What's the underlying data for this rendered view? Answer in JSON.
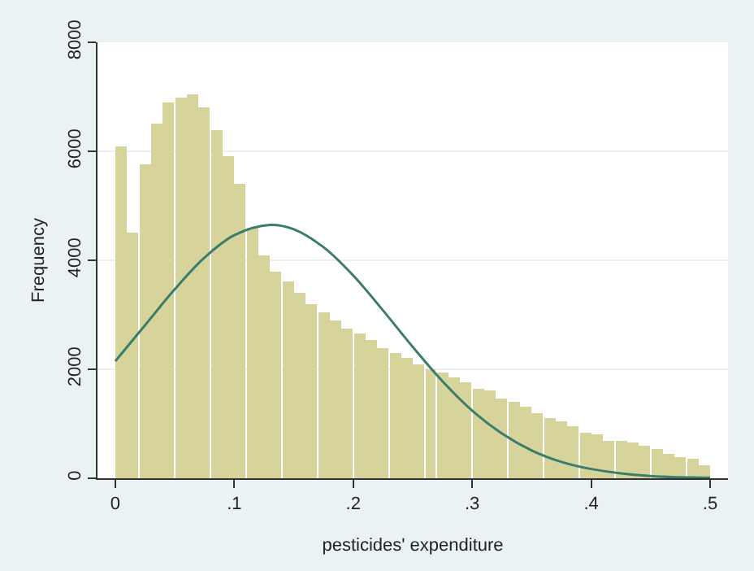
{
  "chart_data": {
    "type": "histogram",
    "xlabel": "pesticides' expenditure",
    "ylabel": "Frequency",
    "bins": [
      0,
      0.01,
      0.02,
      0.03,
      0.04,
      0.05,
      0.06,
      0.07,
      0.08,
      0.09,
      0.1,
      0.11,
      0.12,
      0.13,
      0.14,
      0.15,
      0.16,
      0.17,
      0.18,
      0.19,
      0.2,
      0.21,
      0.22,
      0.23,
      0.24,
      0.25,
      0.26,
      0.27,
      0.28,
      0.29,
      0.3,
      0.31,
      0.32,
      0.33,
      0.34,
      0.35,
      0.36,
      0.37,
      0.38,
      0.39,
      0.4,
      0.41,
      0.42,
      0.43,
      0.44,
      0.45,
      0.46,
      0.47,
      0.48,
      0.49,
      0.5
    ],
    "values": [
      6100,
      4500,
      5750,
      6500,
      6900,
      7000,
      7050,
      6800,
      6400,
      5900,
      5400,
      4600,
      4100,
      3800,
      3600,
      3400,
      3200,
      3050,
      2900,
      2750,
      2650,
      2550,
      2400,
      2300,
      2200,
      2100,
      2000,
      1950,
      1850,
      1750,
      1650,
      1600,
      1450,
      1400,
      1300,
      1200,
      1100,
      1050,
      950,
      850,
      800,
      700,
      700,
      650,
      600,
      550,
      450,
      400,
      350,
      250
    ],
    "color": "#d6d49b",
    "series": [
      {
        "type": "line",
        "color": "#3a7d6c",
        "x": [
          0,
          0.025,
          0.05,
          0.075,
          0.1,
          0.13,
          0.15,
          0.175,
          0.2,
          0.225,
          0.25,
          0.275,
          0.3,
          0.325,
          0.35,
          0.375,
          0.4,
          0.45,
          0.5
        ],
        "values": [
          2150,
          2810,
          3470,
          4050,
          4460,
          4650,
          4570,
          4240,
          3720,
          3080,
          2410,
          1780,
          1240,
          820,
          510,
          300,
          170,
          40,
          10
        ]
      }
    ],
    "xlim": [
      -0.015,
      0.515
    ],
    "xticks": [
      {
        "value": 0,
        "label": "0"
      },
      {
        "value": 0.1,
        "label": ".1"
      },
      {
        "value": 0.2,
        "label": ".2"
      },
      {
        "value": 0.3,
        "label": ".3"
      },
      {
        "value": 0.4,
        "label": ".4"
      },
      {
        "value": 0.5,
        "label": ".5"
      }
    ],
    "ylim": [
      0,
      8000
    ],
    "yticks": [
      0,
      2000,
      4000,
      6000,
      8000
    ],
    "grid": "y"
  }
}
